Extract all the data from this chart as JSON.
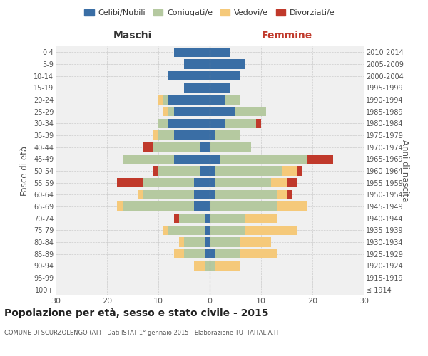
{
  "age_groups": [
    "100+",
    "95-99",
    "90-94",
    "85-89",
    "80-84",
    "75-79",
    "70-74",
    "65-69",
    "60-64",
    "55-59",
    "50-54",
    "45-49",
    "40-44",
    "35-39",
    "30-34",
    "25-29",
    "20-24",
    "15-19",
    "10-14",
    "5-9",
    "0-4"
  ],
  "birth_years": [
    "≤ 1914",
    "1915-1919",
    "1920-1924",
    "1925-1929",
    "1930-1934",
    "1935-1939",
    "1940-1944",
    "1945-1949",
    "1950-1954",
    "1955-1959",
    "1960-1964",
    "1965-1969",
    "1970-1974",
    "1975-1979",
    "1980-1984",
    "1985-1989",
    "1990-1994",
    "1995-1999",
    "2000-2004",
    "2005-2009",
    "2010-2014"
  ],
  "colors": {
    "celibi": "#3a6ea5",
    "coniugati": "#b5c9a0",
    "vedovi": "#f5c97a",
    "divorziati": "#c0392b"
  },
  "males": {
    "celibi": [
      0,
      0,
      0,
      1,
      1,
      1,
      1,
      3,
      3,
      3,
      2,
      7,
      2,
      7,
      8,
      7,
      8,
      5,
      8,
      5,
      7
    ],
    "coniugati": [
      0,
      0,
      1,
      4,
      4,
      7,
      5,
      14,
      10,
      10,
      8,
      10,
      9,
      3,
      2,
      1,
      1,
      0,
      0,
      0,
      0
    ],
    "vedovi": [
      0,
      0,
      2,
      2,
      1,
      1,
      0,
      1,
      1,
      0,
      0,
      0,
      0,
      1,
      0,
      1,
      1,
      0,
      0,
      0,
      0
    ],
    "divorziati": [
      0,
      0,
      0,
      0,
      0,
      0,
      1,
      0,
      0,
      5,
      1,
      0,
      2,
      0,
      0,
      0,
      0,
      0,
      0,
      0,
      0
    ]
  },
  "females": {
    "nubili": [
      0,
      0,
      0,
      1,
      0,
      0,
      0,
      0,
      1,
      1,
      1,
      2,
      0,
      1,
      3,
      5,
      3,
      4,
      6,
      7,
      4
    ],
    "coniugate": [
      0,
      0,
      1,
      5,
      6,
      7,
      7,
      13,
      12,
      11,
      13,
      17,
      8,
      5,
      6,
      6,
      3,
      0,
      0,
      0,
      0
    ],
    "vedove": [
      0,
      0,
      5,
      7,
      6,
      10,
      6,
      6,
      2,
      3,
      3,
      0,
      0,
      0,
      0,
      0,
      0,
      0,
      0,
      0,
      0
    ],
    "divorziate": [
      0,
      0,
      0,
      0,
      0,
      0,
      0,
      0,
      1,
      2,
      1,
      5,
      0,
      0,
      1,
      0,
      0,
      0,
      0,
      0,
      0
    ]
  },
  "xlim": 30,
  "title": "Popolazione per età, sesso e stato civile - 2015",
  "subtitle": "COMUNE DI SCURZOLENGO (AT) - Dati ISTAT 1° gennaio 2015 - Elaborazione TUTTAITALIA.IT",
  "ylabel_left": "Fasce di età",
  "ylabel_right": "Anni di nascita",
  "xlabel_left": "Maschi",
  "xlabel_right": "Femmine",
  "bg_color": "#f0f0f0",
  "grid_color": "#cccccc",
  "legend_labels": [
    "Celibi/Nubili",
    "Coniugati/e",
    "Vedovi/e",
    "Divorziati/e"
  ]
}
